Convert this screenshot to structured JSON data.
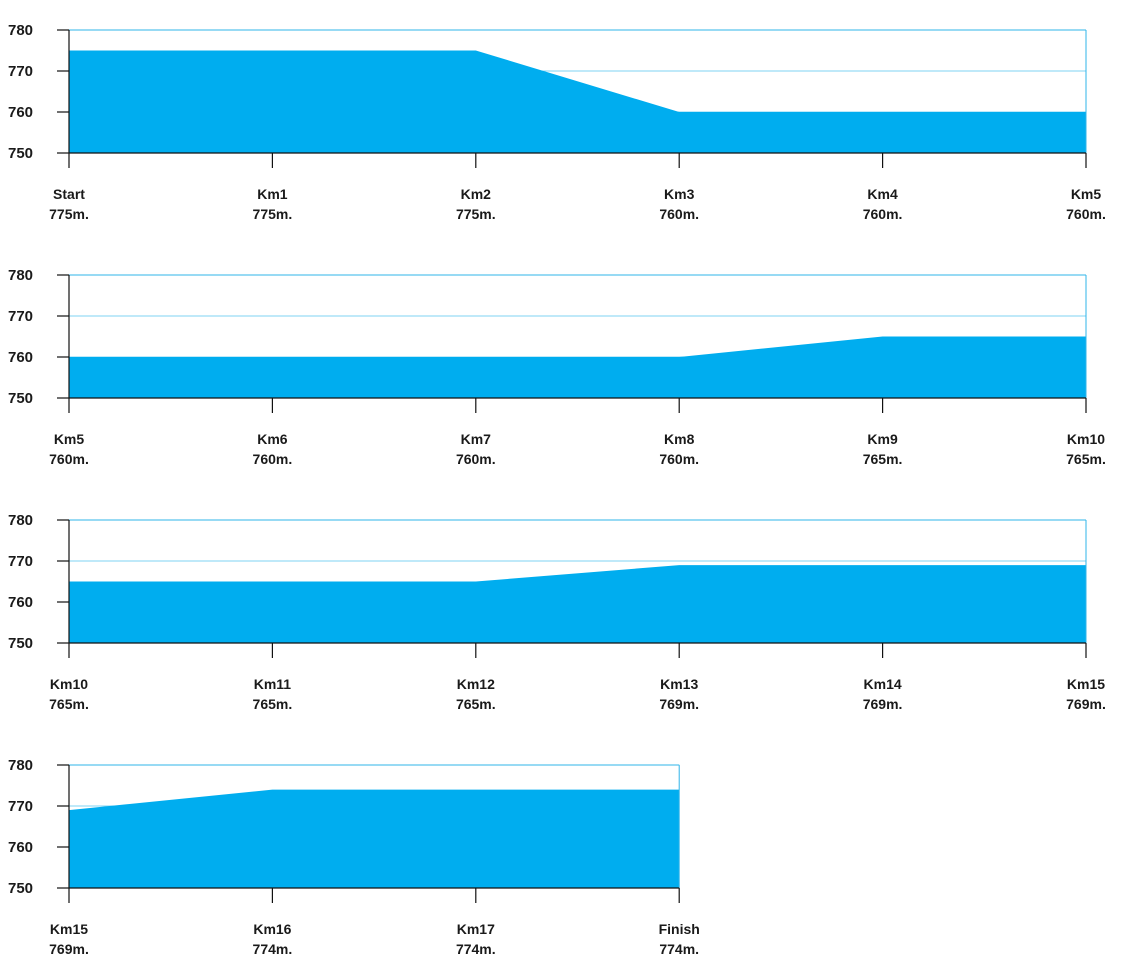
{
  "colors": {
    "area": "#00adef",
    "frame": "#2fb4ea",
    "grid": "#7fd3f3",
    "axis": "#111111",
    "text": "#1a1a1a"
  },
  "chart_data": [
    {
      "type": "area",
      "ylim": [
        750,
        780
      ],
      "yticks": [
        750,
        760,
        770,
        780
      ],
      "grid": true,
      "categories": [
        "Start",
        "Km1",
        "Km2",
        "Km3",
        "Km4",
        "Km5"
      ],
      "value_labels": [
        "775m.",
        "775m.",
        "775m.",
        "760m.",
        "760m.",
        "760m."
      ],
      "values": [
        775,
        775,
        775,
        760,
        760,
        760
      ]
    },
    {
      "type": "area",
      "ylim": [
        750,
        780
      ],
      "yticks": [
        750,
        760,
        770,
        780
      ],
      "grid": true,
      "categories": [
        "Km5",
        "Km6",
        "Km7",
        "Km8",
        "Km9",
        "Km10"
      ],
      "value_labels": [
        "760m.",
        "760m.",
        "760m.",
        "760m.",
        "765m.",
        "765m."
      ],
      "values": [
        760,
        760,
        760,
        760,
        765,
        765
      ]
    },
    {
      "type": "area",
      "ylim": [
        750,
        780
      ],
      "yticks": [
        750,
        760,
        770,
        780
      ],
      "grid": true,
      "categories": [
        "Km10",
        "Km11",
        "Km12",
        "Km13",
        "Km14",
        "Km15"
      ],
      "value_labels": [
        "765m.",
        "765m.",
        "765m.",
        "769m.",
        "769m.",
        "769m."
      ],
      "values": [
        765,
        765,
        765,
        769,
        769,
        769
      ]
    },
    {
      "type": "area",
      "ylim": [
        750,
        780
      ],
      "yticks": [
        750,
        760,
        770,
        780
      ],
      "grid": true,
      "categories": [
        "Km15",
        "Km16",
        "Km17",
        "Finish"
      ],
      "value_labels": [
        "769m.",
        "774m.",
        "774m.",
        "774m."
      ],
      "values": [
        769,
        774,
        774,
        774
      ]
    }
  ]
}
